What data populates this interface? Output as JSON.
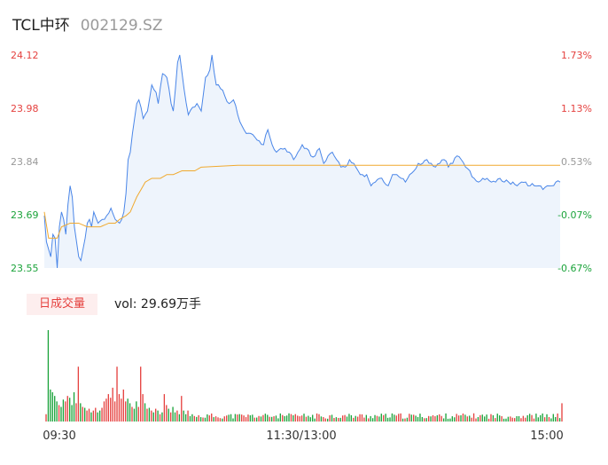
{
  "header": {
    "name": "TCL中环",
    "code": "002129.SZ"
  },
  "volume_panel": {
    "tab_label": "日成交量",
    "vol_text": "vol: 29.69万手"
  },
  "colors": {
    "up": "#e5413f",
    "down": "#1aa33a",
    "neutral": "#999999",
    "price_line": "#4a86e8",
    "avg_line": "#f0a92e",
    "area_fill": "#eef4fc"
  },
  "chart_data": {
    "type": "line",
    "title": "",
    "prev_close": 23.72,
    "y_ticks_left": [
      "24.12",
      "23.98",
      "23.84",
      "23.69",
      "23.55"
    ],
    "y_ticks_right": [
      "1.73%",
      "1.13%",
      "0.53%",
      "-0.07%",
      "-0.67%"
    ],
    "ylim": [
      23.55,
      24.12
    ],
    "x_ticks": [
      "09:30",
      "11:30/13:00",
      "15:00"
    ],
    "n_points": 241,
    "price_keypoints": [
      [
        0,
        23.69
      ],
      [
        1,
        23.62
      ],
      [
        2,
        23.6
      ],
      [
        3,
        23.58
      ],
      [
        4,
        23.64
      ],
      [
        5,
        23.63
      ],
      [
        6,
        23.55
      ],
      [
        7,
        23.66
      ],
      [
        8,
        23.7
      ],
      [
        9,
        23.68
      ],
      [
        10,
        23.64
      ],
      [
        11,
        23.72
      ],
      [
        12,
        23.77
      ],
      [
        13,
        23.74
      ],
      [
        14,
        23.66
      ],
      [
        15,
        23.62
      ],
      [
        16,
        23.58
      ],
      [
        17,
        23.57
      ],
      [
        18,
        23.6
      ],
      [
        19,
        23.63
      ],
      [
        20,
        23.67
      ],
      [
        21,
        23.68
      ],
      [
        22,
        23.66
      ],
      [
        23,
        23.7
      ],
      [
        25,
        23.67
      ],
      [
        27,
        23.68
      ],
      [
        29,
        23.69
      ],
      [
        31,
        23.71
      ],
      [
        33,
        23.68
      ],
      [
        35,
        23.67
      ],
      [
        37,
        23.7
      ],
      [
        38,
        23.75
      ],
      [
        39,
        23.84
      ],
      [
        40,
        23.86
      ],
      [
        41,
        23.91
      ],
      [
        42,
        23.95
      ],
      [
        43,
        23.99
      ],
      [
        44,
        24.0
      ],
      [
        46,
        23.95
      ],
      [
        48,
        23.97
      ],
      [
        50,
        24.04
      ],
      [
        52,
        24.02
      ],
      [
        53,
        23.99
      ],
      [
        55,
        24.07
      ],
      [
        57,
        24.06
      ],
      [
        58,
        24.03
      ],
      [
        59,
        23.99
      ],
      [
        60,
        23.97
      ],
      [
        62,
        24.1
      ],
      [
        63,
        24.12
      ],
      [
        65,
        24.03
      ],
      [
        67,
        23.96
      ],
      [
        69,
        23.98
      ],
      [
        71,
        23.99
      ],
      [
        73,
        23.97
      ],
      [
        75,
        24.06
      ],
      [
        77,
        24.08
      ],
      [
        78,
        24.12
      ],
      [
        80,
        24.04
      ],
      [
        82,
        24.03
      ],
      [
        84,
        24.01
      ],
      [
        86,
        23.99
      ],
      [
        88,
        24.0
      ],
      [
        90,
        23.96
      ],
      [
        92,
        23.93
      ],
      [
        94,
        23.91
      ],
      [
        96,
        23.91
      ],
      [
        98,
        23.9
      ],
      [
        100,
        23.89
      ],
      [
        102,
        23.88
      ],
      [
        104,
        23.92
      ],
      [
        106,
        23.88
      ],
      [
        108,
        23.86
      ],
      [
        110,
        23.87
      ],
      [
        112,
        23.87
      ],
      [
        114,
        23.86
      ],
      [
        116,
        23.84
      ],
      [
        118,
        23.86
      ],
      [
        120,
        23.88
      ],
      [
        122,
        23.87
      ],
      [
        124,
        23.85
      ],
      [
        126,
        23.85
      ],
      [
        128,
        23.87
      ],
      [
        130,
        23.83
      ],
      [
        132,
        23.85
      ],
      [
        134,
        23.86
      ],
      [
        136,
        23.84
      ],
      [
        138,
        23.82
      ],
      [
        140,
        23.82
      ],
      [
        142,
        23.84
      ],
      [
        144,
        23.83
      ],
      [
        146,
        23.81
      ],
      [
        148,
        23.8
      ],
      [
        150,
        23.8
      ],
      [
        152,
        23.77
      ],
      [
        154,
        23.78
      ],
      [
        156,
        23.79
      ],
      [
        158,
        23.78
      ],
      [
        160,
        23.77
      ],
      [
        162,
        23.8
      ],
      [
        164,
        23.8
      ],
      [
        166,
        23.79
      ],
      [
        168,
        23.78
      ],
      [
        170,
        23.8
      ],
      [
        172,
        23.81
      ],
      [
        174,
        23.83
      ],
      [
        176,
        23.83
      ],
      [
        178,
        23.84
      ],
      [
        180,
        23.83
      ],
      [
        182,
        23.82
      ],
      [
        184,
        23.83
      ],
      [
        186,
        23.84
      ],
      [
        188,
        23.82
      ],
      [
        190,
        23.83
      ],
      [
        192,
        23.85
      ],
      [
        194,
        23.84
      ],
      [
        196,
        23.82
      ],
      [
        198,
        23.81
      ],
      [
        200,
        23.79
      ],
      [
        202,
        23.78
      ],
      [
        204,
        23.79
      ],
      [
        206,
        23.79
      ],
      [
        208,
        23.78
      ],
      [
        210,
        23.78
      ],
      [
        212,
        23.79
      ],
      [
        214,
        23.78
      ],
      [
        216,
        23.78
      ],
      [
        218,
        23.78
      ],
      [
        220,
        23.77
      ],
      [
        222,
        23.78
      ],
      [
        224,
        23.78
      ],
      [
        226,
        23.77
      ],
      [
        228,
        23.77
      ],
      [
        230,
        23.77
      ],
      [
        232,
        23.76
      ],
      [
        234,
        23.77
      ],
      [
        236,
        23.77
      ],
      [
        238,
        23.78
      ],
      [
        240,
        23.78
      ]
    ],
    "avg_keypoints": [
      [
        0,
        23.7
      ],
      [
        2,
        23.63
      ],
      [
        6,
        23.63
      ],
      [
        8,
        23.66
      ],
      [
        12,
        23.67
      ],
      [
        16,
        23.67
      ],
      [
        20,
        23.66
      ],
      [
        26,
        23.66
      ],
      [
        30,
        23.67
      ],
      [
        33,
        23.67
      ],
      [
        35,
        23.68
      ],
      [
        38,
        23.69
      ],
      [
        40,
        23.7
      ],
      [
        43,
        23.74
      ],
      [
        45,
        23.76
      ],
      [
        47,
        23.78
      ],
      [
        50,
        23.79
      ],
      [
        54,
        23.79
      ],
      [
        57,
        23.8
      ],
      [
        60,
        23.8
      ],
      [
        64,
        23.81
      ],
      [
        70,
        23.81
      ],
      [
        73,
        23.82
      ],
      [
        80,
        23.822
      ],
      [
        90,
        23.825
      ],
      [
        240,
        23.825
      ]
    ],
    "volume_max": 100,
    "volume_keypoints": [
      [
        0,
        8,
        "up"
      ],
      [
        1,
        100,
        "down"
      ],
      [
        2,
        35,
        "down"
      ],
      [
        3,
        32,
        "down"
      ],
      [
        4,
        28,
        "down"
      ],
      [
        5,
        22,
        "down"
      ],
      [
        6,
        18,
        "up"
      ],
      [
        7,
        16,
        "down"
      ],
      [
        8,
        24,
        "down"
      ],
      [
        9,
        22,
        "up"
      ],
      [
        10,
        28,
        "up"
      ],
      [
        11,
        26,
        "down"
      ],
      [
        12,
        18,
        "down"
      ],
      [
        13,
        32,
        "down"
      ],
      [
        14,
        20,
        "up"
      ],
      [
        15,
        60,
        "up"
      ],
      [
        16,
        20,
        "down"
      ],
      [
        17,
        16,
        "up"
      ],
      [
        18,
        15,
        "down"
      ],
      [
        19,
        12,
        "up"
      ],
      [
        20,
        14,
        "up"
      ],
      [
        21,
        10,
        "down"
      ],
      [
        22,
        12,
        "up"
      ],
      [
        23,
        15,
        "up"
      ],
      [
        24,
        10,
        "down"
      ],
      [
        25,
        12,
        "down"
      ],
      [
        26,
        15,
        "up"
      ],
      [
        27,
        22,
        "up"
      ],
      [
        28,
        25,
        "up"
      ],
      [
        29,
        30,
        "up"
      ],
      [
        30,
        26,
        "up"
      ],
      [
        31,
        37,
        "up"
      ],
      [
        32,
        22,
        "up"
      ],
      [
        33,
        60,
        "up"
      ],
      [
        34,
        30,
        "up"
      ],
      [
        35,
        25,
        "up"
      ],
      [
        36,
        35,
        "up"
      ],
      [
        37,
        22,
        "up"
      ],
      [
        38,
        25,
        "down"
      ],
      [
        39,
        20,
        "down"
      ],
      [
        40,
        16,
        "up"
      ],
      [
        41,
        14,
        "down"
      ],
      [
        42,
        22,
        "down"
      ],
      [
        43,
        16,
        "up"
      ],
      [
        44,
        60,
        "up"
      ],
      [
        45,
        30,
        "up"
      ],
      [
        46,
        20,
        "down"
      ],
      [
        47,
        14,
        "up"
      ],
      [
        48,
        15,
        "down"
      ],
      [
        49,
        12,
        "up"
      ],
      [
        50,
        10,
        "down"
      ],
      [
        51,
        14,
        "up"
      ],
      [
        52,
        12,
        "down"
      ],
      [
        53,
        8,
        "up"
      ],
      [
        54,
        10,
        "down"
      ],
      [
        55,
        30,
        "up"
      ],
      [
        56,
        18,
        "up"
      ],
      [
        57,
        14,
        "down"
      ],
      [
        58,
        10,
        "up"
      ],
      [
        59,
        16,
        "down"
      ],
      [
        60,
        10,
        "down"
      ],
      [
        61,
        12,
        "up"
      ],
      [
        62,
        8,
        "down"
      ],
      [
        63,
        28,
        "up"
      ],
      [
        64,
        12,
        "down"
      ],
      [
        65,
        8,
        "down"
      ],
      [
        66,
        12,
        "up"
      ],
      [
        67,
        6,
        "down"
      ],
      [
        68,
        8,
        "down"
      ],
      [
        69,
        6,
        "up"
      ],
      [
        70,
        5,
        "down"
      ],
      [
        240,
        20,
        "up"
      ]
    ]
  }
}
